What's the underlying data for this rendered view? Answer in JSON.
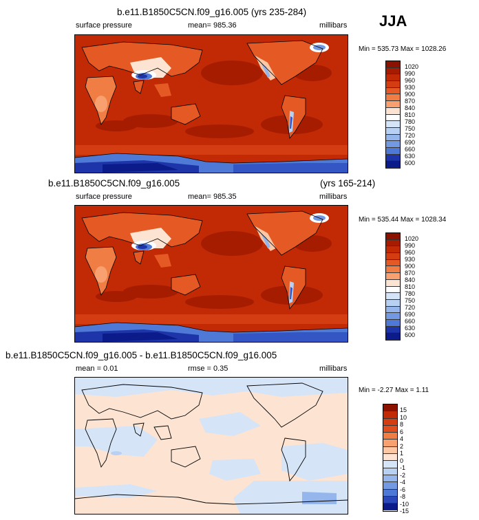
{
  "season": "JJA",
  "colors": {
    "abs_scale": [
      "#8c1200",
      "#a51c00",
      "#c22a06",
      "#d43d12",
      "#e55a24",
      "#f07d44",
      "#f8a070",
      "#fcc7a4",
      "#fde4d2",
      "#ffffff",
      "#d6e4f8",
      "#b8d0f2",
      "#95b6ec",
      "#7299e2",
      "#4f79d6",
      "#3356c4",
      "#1d35a8",
      "#0c1b8a"
    ],
    "diff_scale": [
      "#8c1200",
      "#c22a06",
      "#e04c1c",
      "#f07d44",
      "#f8a070",
      "#fcc7a4",
      "#fde4d2",
      "#d6e4f8",
      "#b8d0f2",
      "#95b6ec",
      "#7299e2",
      "#4f79d6",
      "#2b48bb",
      "#0c1b8a"
    ]
  },
  "panels": [
    {
      "title": "b.e11.B1850C5CN.f09_g16.005 (yrs 235-284)",
      "left_label": "surface pressure",
      "center_label": "mean= 985.36",
      "right_label": "millibars",
      "minmax": "Min = 535.73 Max = 1028.26",
      "colorbar_labels": [
        "1020",
        "990",
        "960",
        "930",
        "900",
        "870",
        "840",
        "810",
        "780",
        "750",
        "720",
        "690",
        "660",
        "630",
        "600"
      ]
    },
    {
      "title": "b.e11.B1850C5CN.f09_g16.005",
      "title_right": "(yrs 165-214)",
      "left_label": "surface pressure",
      "center_label": "mean= 985.35",
      "right_label": "millibars",
      "minmax": "Min = 535.44 Max = 1028.34",
      "colorbar_labels": [
        "1020",
        "990",
        "960",
        "930",
        "900",
        "870",
        "840",
        "810",
        "780",
        "750",
        "720",
        "690",
        "660",
        "630",
        "600"
      ]
    },
    {
      "title": "b.e11.B1850C5CN.f09_g16.005 - b.e11.B1850C5CN.f09_g16.005",
      "left_label": "mean =  0.01",
      "center_label": "rmse =   0.35",
      "right_label": "millibars",
      "minmax": "Min =  -2.27 Max =   1.11",
      "colorbar_labels": [
        "15",
        "10",
        "8",
        "6",
        "4",
        "2",
        "1",
        "0",
        "-1",
        "-2",
        "-4",
        "-6",
        "-8",
        "-10",
        "-15"
      ]
    }
  ],
  "chart_data": [
    {
      "type": "heatmap",
      "title": "b.e11.B1850C5CN.f09_g16.005 (yrs 235-284)",
      "variable": "surface pressure",
      "units": "millibars",
      "mean": 985.36,
      "min": 535.73,
      "max": 1028.26,
      "colorbar_levels": [
        1020,
        990,
        960,
        930,
        900,
        870,
        840,
        810,
        780,
        750,
        720,
        690,
        660,
        630,
        600
      ],
      "legend": "right"
    },
    {
      "type": "heatmap",
      "title": "b.e11.B1850C5CN.f09_g16.005 (yrs 165-214)",
      "variable": "surface pressure",
      "units": "millibars",
      "mean": 985.35,
      "min": 535.44,
      "max": 1028.34,
      "colorbar_levels": [
        1020,
        990,
        960,
        930,
        900,
        870,
        840,
        810,
        780,
        750,
        720,
        690,
        660,
        630,
        600
      ],
      "legend": "right"
    },
    {
      "type": "heatmap",
      "title": "b.e11.B1850C5CN.f09_g16.005 - b.e11.B1850C5CN.f09_g16.005",
      "units": "millibars",
      "mean": 0.01,
      "rmse": 0.35,
      "min": -2.27,
      "max": 1.11,
      "colorbar_levels": [
        15,
        10,
        8,
        6,
        4,
        2,
        1,
        0,
        -1,
        -2,
        -4,
        -6,
        -8,
        -10,
        -15
      ],
      "legend": "right"
    }
  ]
}
